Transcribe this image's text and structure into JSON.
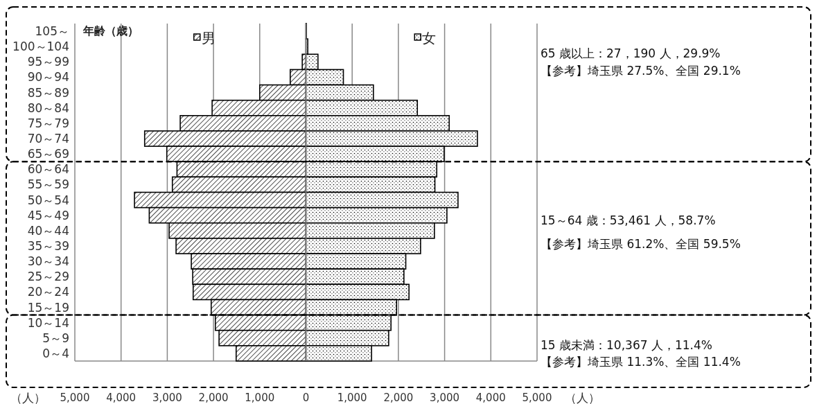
{
  "chart_data": {
    "type": "bar",
    "orientation": "horizontal",
    "ylabel": "年齢（歳）",
    "xlabel": "（人）",
    "categories": [
      "105～",
      "100～104",
      "95～99",
      "90～94",
      "85～89",
      "80～84",
      "75～79",
      "70～74",
      "65～69",
      "60～64",
      "55～59",
      "50～54",
      "45～49",
      "40～44",
      "35～39",
      "30～34",
      "25～29",
      "20～24",
      "15～19",
      "10～14",
      "5～9",
      "0～4"
    ],
    "series": [
      {
        "name": "男",
        "color": "#000000",
        "values": [
          0,
          null,
          -80,
          -340,
          -1000,
          -2030,
          -2720,
          -3490,
          -3010,
          -2790,
          -2890,
          -3710,
          -3390,
          -2960,
          -2810,
          -2480,
          -2450,
          -2440,
          -2050,
          -1960,
          -1880,
          -1510
        ]
      },
      {
        "name": "女",
        "color": "#000000",
        "values": [
          10,
          40,
          260,
          810,
          1460,
          2410,
          3100,
          3710,
          2990,
          2830,
          2790,
          3290,
          3050,
          2780,
          2480,
          2160,
          2120,
          2230,
          1960,
          1840,
          1790,
          1420
        ]
      }
    ],
    "xlim": [
      -5000,
      5000
    ],
    "xticks": [
      {
        "value": -5000,
        "label": "5,000"
      },
      {
        "value": -4000,
        "label": "4,000"
      },
      {
        "value": -3000,
        "label": "3,000"
      },
      {
        "value": -2000,
        "label": "2,000"
      },
      {
        "value": -1000,
        "label": "1,000"
      },
      0,
      {
        "value": 1000,
        "label": "1,000"
      },
      {
        "value": 2000,
        "label": "2,000"
      },
      {
        "value": 3000,
        "label": "3,000"
      },
      {
        "value": 4000,
        "label": "4,000"
      },
      {
        "value": 5000,
        "label": "5,000"
      }
    ],
    "grid": "x",
    "legend": "top",
    "stacked": true,
    "annotations": [
      "65 歳以上：27，190 人，29.9%",
      "【参考】埼玉県 27.5%、全国 29.1%",
      "15～64 歳：53,461 人，58.7%",
      "【参考】埼玉県 61.2%、全国 59.5%",
      "15 歳未満：10,367 人，11.4%",
      "【参考】埼玉県 11.3%、全国 11.4%"
    ]
  }
}
